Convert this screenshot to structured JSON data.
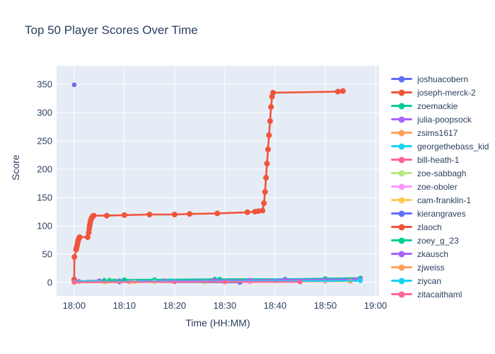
{
  "title": "Top 50 Player Scores Over Time",
  "chart_data": {
    "type": "line",
    "title": "Top 50 Player Scores Over Time",
    "xlabel": "Time (HH:MM)",
    "ylabel": "Score",
    "x_unit": "minutes after 18:00",
    "x_range": [
      -3.5,
      60.7
    ],
    "ylim": [
      -23.75,
      382.5
    ],
    "grid": true,
    "legend_position": "right",
    "plot_background": "#E5ECF6",
    "grid_color": "#ffffff",
    "text_color": "#2a3f5f",
    "x_ticks": [
      {
        "label": "18:00",
        "min": 0
      },
      {
        "label": "18:10",
        "min": 10
      },
      {
        "label": "18:20",
        "min": 20
      },
      {
        "label": "18:30",
        "min": 30
      },
      {
        "label": "18:40",
        "min": 40
      },
      {
        "label": "18:50",
        "min": 50
      },
      {
        "label": "19:00",
        "min": 60
      }
    ],
    "y_ticks": [
      0,
      50,
      100,
      150,
      200,
      250,
      300,
      350
    ],
    "series": [
      {
        "name": "joshuacobern",
        "color": "#636EFA",
        "points": [
          [
            0,
            349
          ]
        ]
      },
      {
        "name": "joseph-merck-2",
        "color": "#EF553B",
        "points": [
          [
            0,
            5
          ],
          [
            0.05,
            45
          ],
          [
            0.4,
            58
          ],
          [
            0.5,
            62
          ],
          [
            0.6,
            66
          ],
          [
            0.7,
            70
          ],
          [
            0.8,
            74
          ],
          [
            0.9,
            77
          ],
          [
            1.0,
            79
          ],
          [
            1.1,
            80
          ],
          [
            2.7,
            80
          ],
          [
            2.9,
            88
          ],
          [
            3.0,
            95
          ],
          [
            3.1,
            101
          ],
          [
            3.2,
            106
          ],
          [
            3.3,
            110
          ],
          [
            3.5,
            114
          ],
          [
            3.7,
            117
          ],
          [
            3.9,
            118
          ],
          [
            6.5,
            118
          ],
          [
            10,
            119
          ],
          [
            15,
            120
          ],
          [
            20,
            120
          ],
          [
            23,
            121
          ],
          [
            28.5,
            122
          ],
          [
            34.5,
            124
          ],
          [
            36,
            125
          ],
          [
            36.7,
            126
          ],
          [
            37.5,
            127
          ],
          [
            37.8,
            140
          ],
          [
            38.0,
            160
          ],
          [
            38.2,
            185
          ],
          [
            38.4,
            210
          ],
          [
            38.6,
            235
          ],
          [
            38.8,
            260
          ],
          [
            39.0,
            285
          ],
          [
            39.2,
            310
          ],
          [
            39.4,
            328
          ],
          [
            39.6,
            335
          ],
          [
            52.5,
            337
          ],
          [
            53.5,
            338
          ]
        ]
      },
      {
        "name": "zoemackie",
        "color": "#00CC96",
        "points": [
          [
            0,
            2
          ],
          [
            6,
            4
          ],
          [
            7,
            4
          ],
          [
            10,
            5
          ],
          [
            16,
            5
          ],
          [
            28,
            6
          ],
          [
            29,
            6
          ],
          [
            42,
            6
          ],
          [
            50,
            7
          ],
          [
            57,
            8
          ]
        ]
      },
      {
        "name": "julia-poopsock",
        "color": "#AB63FA",
        "points": [
          [
            0,
            1
          ],
          [
            1,
            2
          ],
          [
            5,
            3
          ],
          [
            9,
            3
          ],
          [
            18,
            3
          ],
          [
            28,
            4
          ],
          [
            35,
            4
          ],
          [
            42,
            5
          ],
          [
            50,
            5
          ],
          [
            57,
            6
          ]
        ]
      },
      {
        "name": "zsims1617",
        "color": "#FFA15A",
        "points": [
          [
            0,
            0
          ],
          [
            6,
            1
          ],
          [
            11,
            1
          ],
          [
            35,
            1
          ],
          [
            50,
            2
          ]
        ]
      },
      {
        "name": "georgethebass_kid",
        "color": "#19D3F3",
        "points": [
          [
            0,
            2
          ],
          [
            20,
            3
          ],
          [
            40,
            3
          ],
          [
            57,
            4
          ]
        ]
      },
      {
        "name": "bill-heath-1",
        "color": "#FF6692",
        "points": [
          [
            0,
            1
          ],
          [
            20,
            1
          ],
          [
            45,
            1
          ]
        ]
      },
      {
        "name": "zoe-sabbagh",
        "color": "#B6E880",
        "points": [
          [
            0,
            0
          ],
          [
            16,
            1
          ],
          [
            26,
            1
          ]
        ]
      },
      {
        "name": "zoe-oboler",
        "color": "#FF97FF",
        "points": [
          [
            0,
            1
          ],
          [
            12,
            1
          ],
          [
            35,
            1
          ],
          [
            50,
            2
          ]
        ]
      },
      {
        "name": "cam-franklin-1",
        "color": "#FECB52",
        "points": [
          [
            0,
            0
          ],
          [
            6.5,
            2
          ],
          [
            12,
            1
          ]
        ]
      },
      {
        "name": "kierangraves",
        "color": "#636EFA",
        "points": [
          [
            9,
            1
          ],
          [
            33,
            0
          ]
        ]
      },
      {
        "name": "zlaoch",
        "color": "#EF553B",
        "points": [
          [
            0,
            5
          ]
        ]
      },
      {
        "name": "zoey_g_23",
        "color": "#00CC96",
        "points": [
          [
            6,
            3
          ],
          [
            8,
            3
          ],
          [
            10,
            4
          ]
        ]
      },
      {
        "name": "zkausch",
        "color": "#AB63FA",
        "points": [
          [
            0,
            1
          ],
          [
            28,
            3
          ],
          [
            42,
            4
          ],
          [
            56,
            5
          ]
        ]
      },
      {
        "name": "zjweiss",
        "color": "#FFA15A",
        "points": [
          [
            0,
            0
          ],
          [
            30,
            1
          ],
          [
            55,
            2
          ]
        ]
      },
      {
        "name": "ziycan",
        "color": "#19D3F3",
        "points": [
          [
            0,
            1
          ],
          [
            30,
            2
          ],
          [
            57,
            3
          ]
        ]
      },
      {
        "name": "zitacaithaml",
        "color": "#FF6692",
        "points": [
          [
            0,
            0.5
          ],
          [
            30,
            1
          ],
          [
            45,
            1
          ]
        ]
      }
    ]
  }
}
